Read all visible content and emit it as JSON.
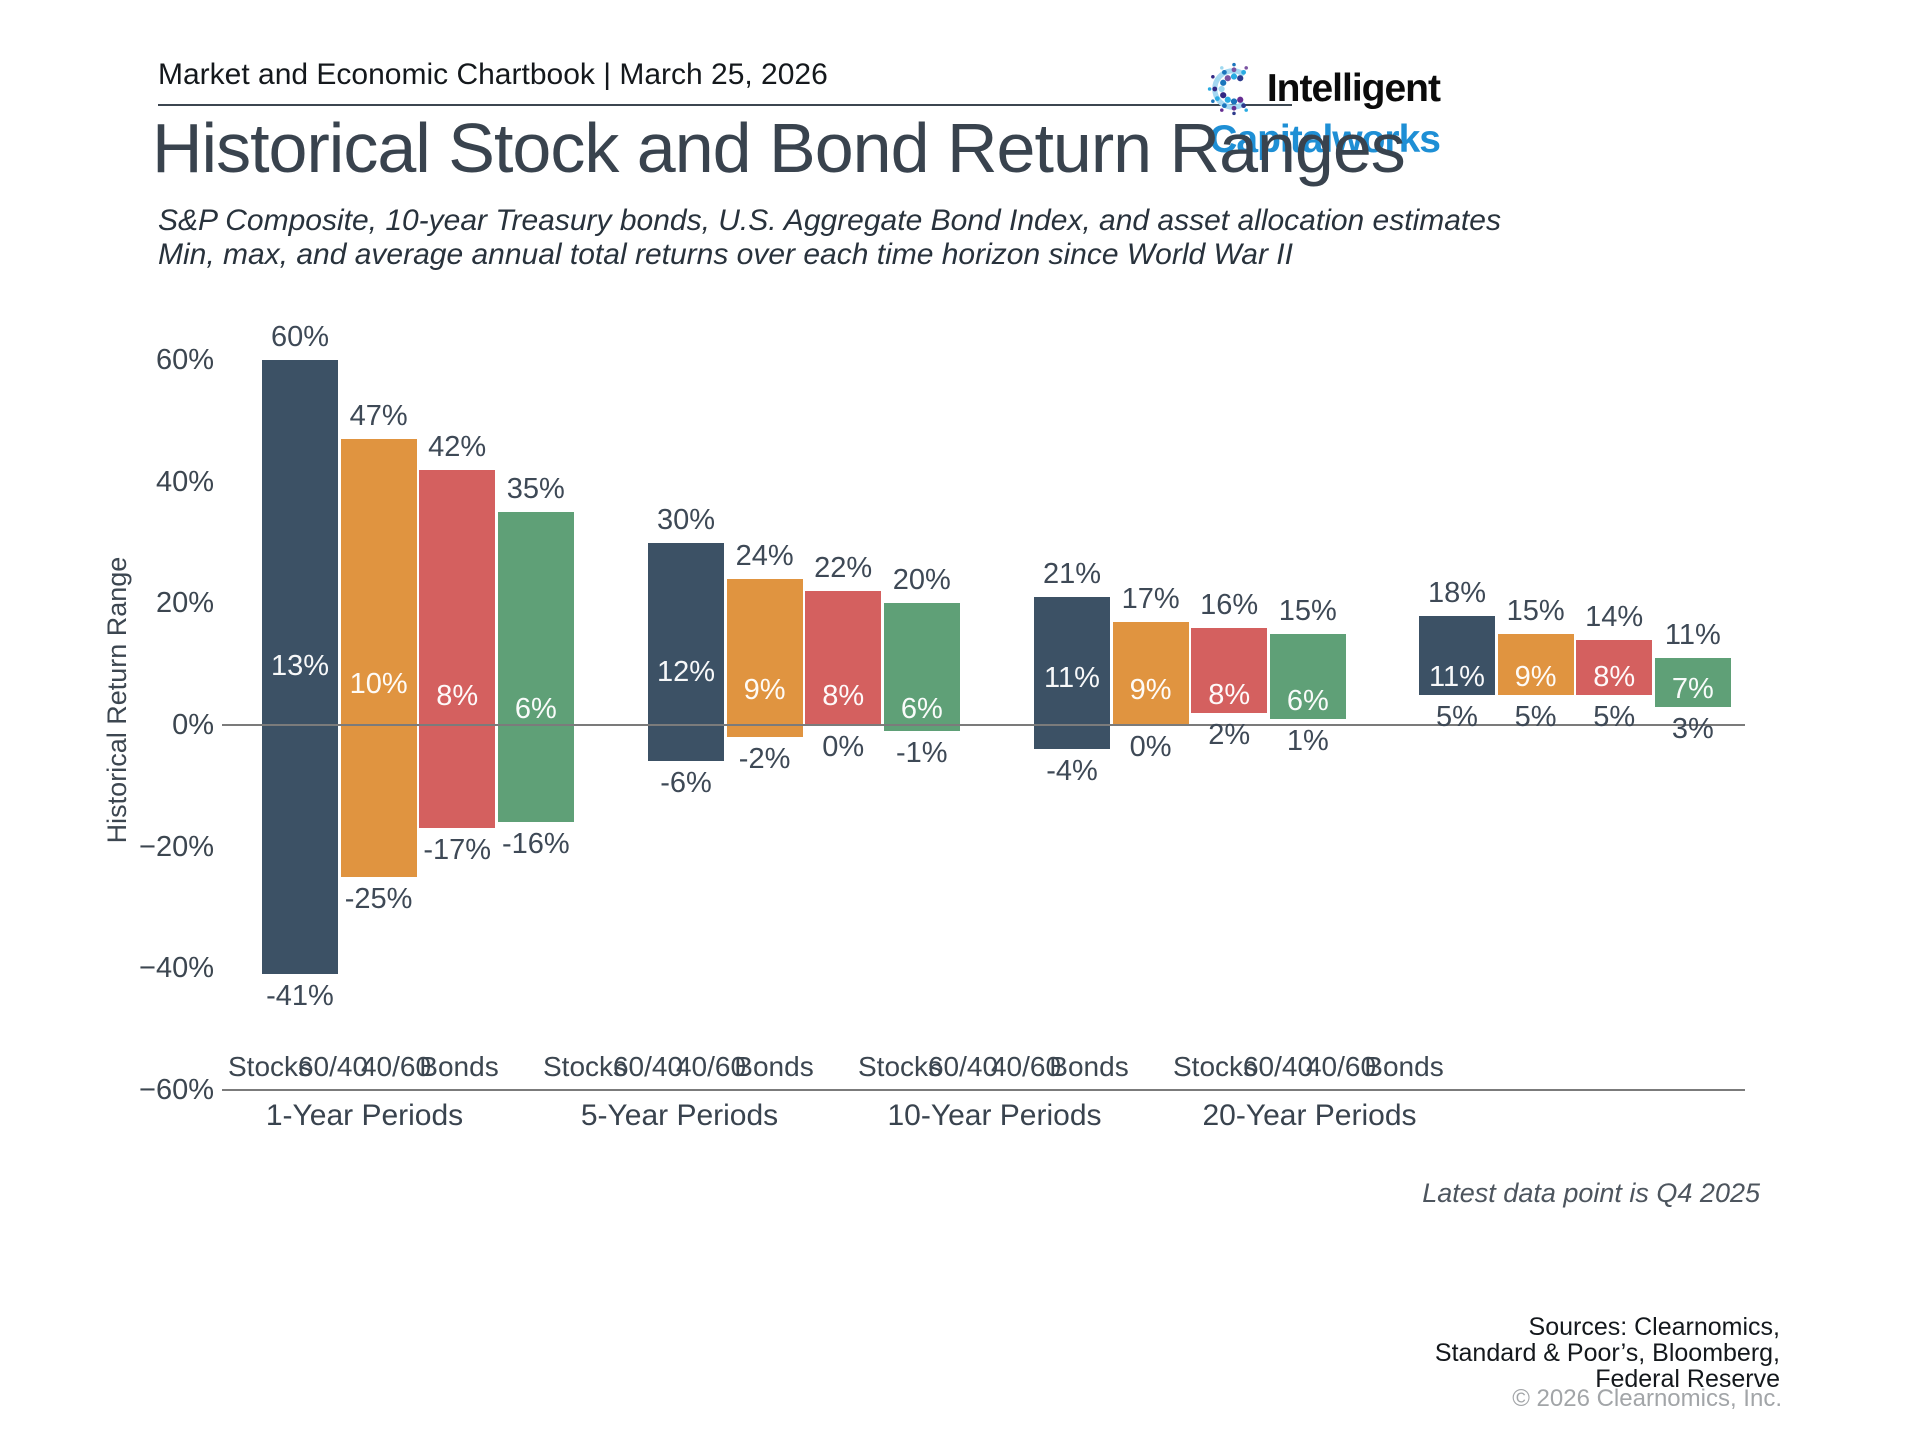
{
  "header": {
    "title": "Market and Economic Chartbook | March 25, 2026"
  },
  "logo": {
    "line1": "Intelligent",
    "line2": "Capitalworks",
    "icon": "dot-burst-c-icon",
    "icon_colors": [
      "#2d3a8c",
      "#29abe2",
      "#7a52a1",
      "#1b75bc",
      "#9fd9f0",
      "#312783",
      "#29abe2",
      "#1b75bc",
      "#662d91"
    ],
    "icon_arc_color": "#a5d8f2",
    "brand_blue": "#1e8fd5"
  },
  "title": "Historical Stock and Bond Return Ranges",
  "subtitle": {
    "line1": "S&P Composite, 10-year Treasury bonds, U.S. Aggregate Bond Index, and asset allocation estimates",
    "line2": "Min, max, and average annual total returns over each time horizon since World War II"
  },
  "chart_data": {
    "type": "bar",
    "subtype": "floating-min-max-range-bars",
    "title": "Historical Stock and Bond Return Ranges",
    "ylabel": "Historical Return Range",
    "ylim": [
      -60,
      65
    ],
    "grid": false,
    "yticks": [
      60,
      40,
      20,
      0,
      -20,
      -40,
      -60
    ],
    "ytick_labels": [
      "60%",
      "40%",
      "20%",
      "0%",
      "−20%",
      "−40%",
      "−60%"
    ],
    "series_names": [
      "Stocks",
      "60/40",
      "40/60",
      "Bonds"
    ],
    "series_colors": {
      "Stocks": "#3c5165",
      "60/40": "#e09440",
      "40/60": "#d4605f",
      "Bonds": "#5fa077"
    },
    "axis_line_color": "#7b7b7b",
    "value_label_color": "#3e4956",
    "groups": [
      {
        "label": "1-Year Periods",
        "bars": [
          {
            "name": "Stocks",
            "max": 60,
            "avg": 13,
            "min": -41
          },
          {
            "name": "60/40",
            "max": 47,
            "avg": 10,
            "min": -25
          },
          {
            "name": "40/60",
            "max": 42,
            "avg": 8,
            "min": -17
          },
          {
            "name": "Bonds",
            "max": 35,
            "avg": 6,
            "min": -16
          }
        ]
      },
      {
        "label": "5-Year Periods",
        "bars": [
          {
            "name": "Stocks",
            "max": 30,
            "avg": 12,
            "min": -6
          },
          {
            "name": "60/40",
            "max": 24,
            "avg": 9,
            "min": -2
          },
          {
            "name": "40/60",
            "max": 22,
            "avg": 8,
            "min": 0
          },
          {
            "name": "Bonds",
            "max": 20,
            "avg": 6,
            "min": -1
          }
        ]
      },
      {
        "label": "10-Year Periods",
        "bars": [
          {
            "name": "Stocks",
            "max": 21,
            "avg": 11,
            "min": -4
          },
          {
            "name": "60/40",
            "max": 17,
            "avg": 9,
            "min": 0
          },
          {
            "name": "40/60",
            "max": 16,
            "avg": 8,
            "min": 2
          },
          {
            "name": "Bonds",
            "max": 15,
            "avg": 6,
            "min": 1
          }
        ]
      },
      {
        "label": "20-Year Periods",
        "bars": [
          {
            "name": "Stocks",
            "max": 18,
            "avg": 11,
            "min": 5
          },
          {
            "name": "60/40",
            "max": 15,
            "avg": 9,
            "min": 5
          },
          {
            "name": "40/60",
            "max": 14,
            "avg": 8,
            "min": 5
          },
          {
            "name": "Bonds",
            "max": 11,
            "avg": 7,
            "min": 3
          }
        ]
      }
    ]
  },
  "footer": {
    "note": "Latest data point is Q4 2025",
    "sources": [
      "Sources: Clearnomics,",
      "Standard & Poor’s, Bloomberg,",
      "Federal Reserve"
    ],
    "copyright": "© 2026 Clearnomics, Inc."
  }
}
